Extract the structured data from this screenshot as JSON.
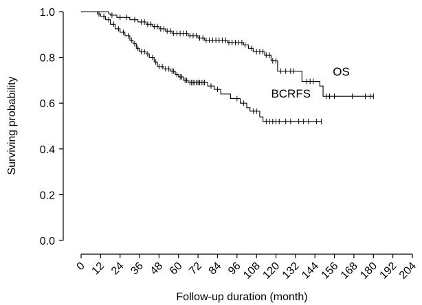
{
  "chart_data": {
    "type": "line",
    "title": "",
    "xlabel": "Follow-up duration (month)",
    "ylabel": "Surviving probability",
    "xlim": [
      0,
      204
    ],
    "ylim": [
      0.0,
      1.0
    ],
    "x_ticks": [
      0,
      12,
      24,
      36,
      48,
      60,
      72,
      84,
      96,
      108,
      120,
      132,
      144,
      156,
      168,
      180,
      192,
      204
    ],
    "y_ticks": [
      0.0,
      0.2,
      0.4,
      0.6,
      0.8,
      1.0
    ],
    "y_tick_labels": [
      "0.0",
      "0.2",
      "0.4",
      "0.6",
      "0.8",
      "1.0"
    ],
    "grid": false,
    "legend": "none",
    "series": [
      {
        "name": "OS",
        "steps": [
          [
            0,
            1.0
          ],
          [
            17,
            0.99
          ],
          [
            18,
            0.985
          ],
          [
            22,
            0.975
          ],
          [
            30,
            0.965
          ],
          [
            35,
            0.955
          ],
          [
            40,
            0.945
          ],
          [
            44,
            0.935
          ],
          [
            48,
            0.925
          ],
          [
            52,
            0.915
          ],
          [
            56,
            0.905
          ],
          [
            66,
            0.895
          ],
          [
            72,
            0.885
          ],
          [
            76,
            0.875
          ],
          [
            90,
            0.865
          ],
          [
            100,
            0.855
          ],
          [
            103,
            0.84
          ],
          [
            106,
            0.825
          ],
          [
            113,
            0.81
          ],
          [
            117,
            0.785
          ],
          [
            121,
            0.74
          ],
          [
            136,
            0.695
          ],
          [
            147,
            0.675
          ],
          [
            149,
            0.63
          ]
        ],
        "censored_x": [
          19,
          24,
          28,
          33,
          37,
          39,
          41,
          43,
          45,
          47,
          49,
          51,
          53,
          55,
          57,
          59,
          61,
          63,
          65,
          67,
          69,
          71,
          73,
          75,
          77,
          79,
          81,
          83,
          85,
          87,
          89,
          91,
          93,
          95,
          97,
          99,
          101,
          105,
          108,
          110,
          112,
          114,
          116,
          118,
          120,
          123,
          126,
          129,
          131,
          139,
          141,
          143,
          151,
          153,
          156,
          167,
          175,
          178,
          180
        ]
      },
      {
        "name": "BCRFS",
        "steps": [
          [
            0,
            1.0
          ],
          [
            10,
            0.99
          ],
          [
            12,
            0.98
          ],
          [
            15,
            0.965
          ],
          [
            18,
            0.945
          ],
          [
            21,
            0.925
          ],
          [
            24,
            0.91
          ],
          [
            27,
            0.895
          ],
          [
            30,
            0.875
          ],
          [
            32,
            0.86
          ],
          [
            34,
            0.84
          ],
          [
            36,
            0.825
          ],
          [
            40,
            0.815
          ],
          [
            42,
            0.8
          ],
          [
            45,
            0.78
          ],
          [
            47,
            0.76
          ],
          [
            51,
            0.75
          ],
          [
            55,
            0.74
          ],
          [
            58,
            0.725
          ],
          [
            60,
            0.715
          ],
          [
            63,
            0.7
          ],
          [
            66,
            0.69
          ],
          [
            78,
            0.675
          ],
          [
            82,
            0.66
          ],
          [
            86,
            0.64
          ],
          [
            92,
            0.62
          ],
          [
            98,
            0.6
          ],
          [
            102,
            0.58
          ],
          [
            104,
            0.565
          ],
          [
            110,
            0.54
          ],
          [
            112,
            0.52
          ]
        ],
        "censored_x": [
          11,
          14,
          17,
          20,
          23,
          26,
          29,
          31,
          33,
          35,
          37,
          39,
          41,
          44,
          46,
          48,
          50,
          52,
          54,
          56,
          57,
          59,
          61,
          62,
          64,
          65,
          67,
          68,
          69,
          70,
          71,
          72,
          73,
          74,
          75,
          76,
          80,
          84,
          96,
          100,
          106,
          108,
          114,
          116,
          118,
          120,
          122,
          126,
          129,
          134,
          137,
          140,
          145,
          148
        ]
      }
    ]
  }
}
